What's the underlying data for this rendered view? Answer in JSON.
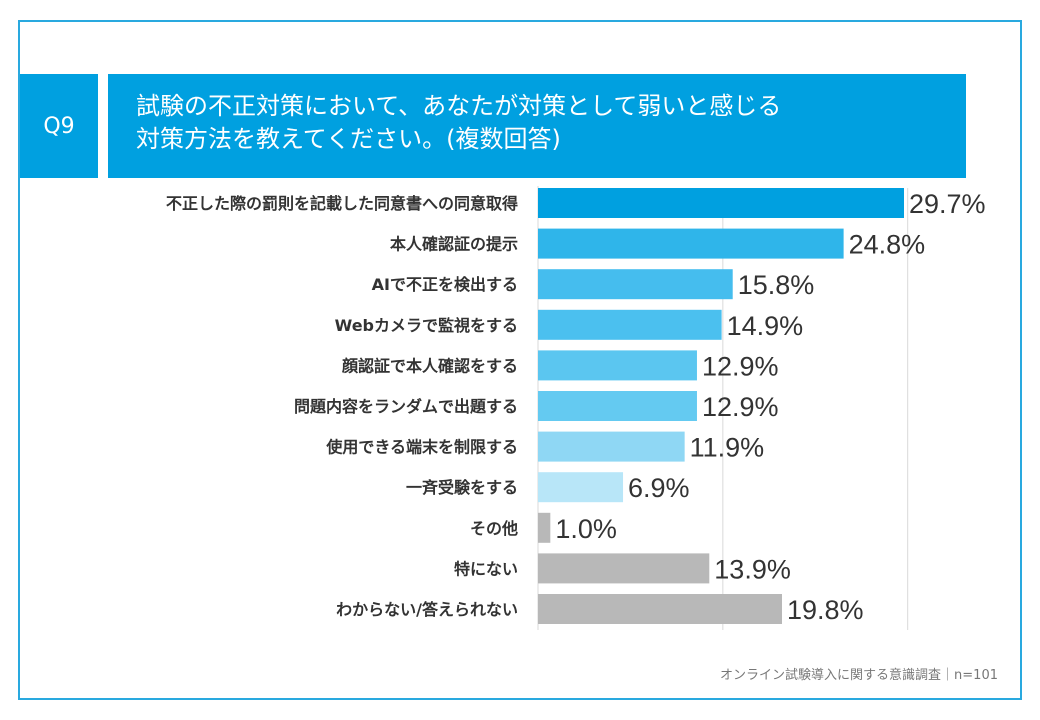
{
  "question": {
    "label": "Q9",
    "title_line1": "試験の不正対策において、あなたが対策として弱いと感じる",
    "title_line2": "対策方法を教えてください。(複数回答)"
  },
  "footer": "オンライン試験導入に関する意識調査｜n=101",
  "chart_data": {
    "type": "bar",
    "orientation": "horizontal",
    "unit": "%",
    "xlim": [
      0,
      40
    ],
    "gridlines": [
      15,
      30
    ],
    "categories": [
      "不正した際の罰則を記載した同意書への同意取得",
      "本人確認証の提示",
      "AIで不正を検出する",
      "Webカメラで監視をする",
      "顔認証で本人確認をする",
      "問題内容をランダムで出題する",
      "使用できる端末を制限する",
      "一斉受験をする",
      "その他",
      "特にない",
      "わからない/答えられない"
    ],
    "values": [
      29.7,
      24.8,
      15.8,
      14.9,
      12.9,
      12.9,
      11.9,
      6.9,
      1.0,
      13.9,
      19.8
    ],
    "value_labels": [
      "29.7%",
      "24.8%",
      "15.8%",
      "14.9%",
      "12.9%",
      "12.9%",
      "11.9%",
      "6.9%",
      "1.0%",
      "13.9%",
      "19.8%"
    ],
    "colors": [
      "#00a0e0",
      "#2fb5ea",
      "#45bdee",
      "#4bc0ef",
      "#5bc6f0",
      "#64caf1",
      "#8fd7f4",
      "#b8e6f8",
      "#b8b8b8",
      "#b8b8b8",
      "#b8b8b8"
    ]
  }
}
